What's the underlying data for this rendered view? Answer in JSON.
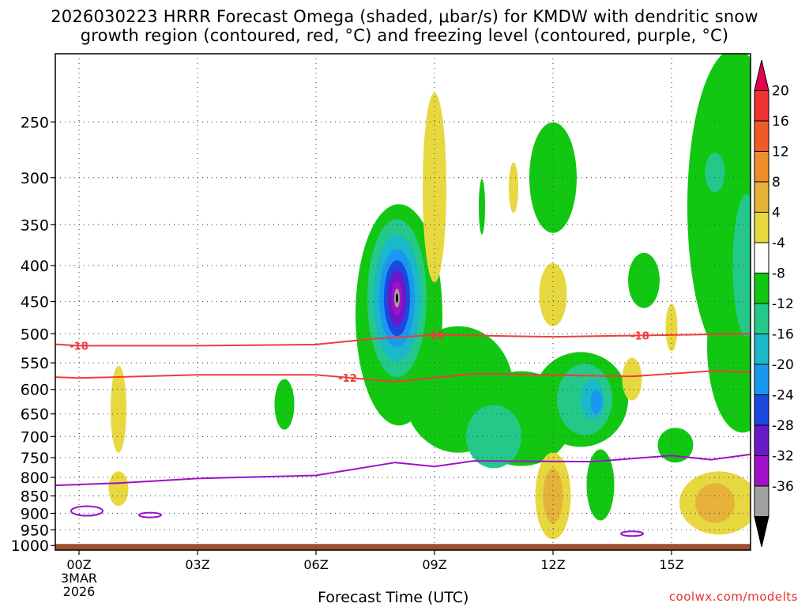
{
  "title_line1": "2026030223 HRRR Forecast Omega (shaded, μbar/s) for KMDW with dendritic snow",
  "title_line2": "growth region (contoured, red, °C) and freezing level (contoured, purple, °C)",
  "watermark": "coolwx.com/modelts",
  "chart_data": {
    "type": "heatmap",
    "title": "2026030223 HRRR Forecast Omega (shaded, μbar/s) for KMDW with dendritic snow growth region (contoured, red, °C) and freezing level (contoured, purple, °C)",
    "xlabel": "Forecast Time (UTC)",
    "ylabel": "",
    "x_ticks": [
      "00Z",
      "03Z",
      "06Z",
      "09Z",
      "12Z",
      "15Z"
    ],
    "x_tick_hours": [
      0,
      3,
      6,
      9,
      12,
      15
    ],
    "x_date_label": [
      "3MAR",
      "2026"
    ],
    "xlim_hours": [
      -0.6,
      17
    ],
    "y_ticks": [
      250,
      300,
      350,
      400,
      450,
      500,
      550,
      600,
      650,
      700,
      750,
      800,
      850,
      900,
      950,
      1000
    ],
    "ylim_hpa": [
      1015,
      200
    ],
    "grid": true,
    "colorbar": {
      "labels": [
        "20",
        "16",
        "12",
        "8",
        "4",
        "-4",
        "-8",
        "-12",
        "-16",
        "-20",
        "-24",
        "-28",
        "-32",
        "-36"
      ],
      "colors": [
        "#e8004f",
        "#f23030",
        "#f05a28",
        "#ee8e2a",
        "#e6b23a",
        "#e8d840",
        "#ffffff",
        "#12c712",
        "#24c98a",
        "#1ab8c8",
        "#1a98f0",
        "#1a48e0",
        "#6a18c8",
        "#a010c8",
        "#a0a0a0",
        "#000000"
      ]
    },
    "omega_features": [
      {
        "label": "upward max",
        "hour": 8.0,
        "pressure": 450,
        "min_value": -36
      },
      {
        "label": "upward",
        "hour": 13.0,
        "pressure": 620,
        "min_value": -20
      },
      {
        "label": "downward",
        "hour": 12.0,
        "pressure": 850,
        "max_value": 12
      },
      {
        "label": "downward",
        "hour": 16.0,
        "pressure": 870,
        "max_value": 12
      }
    ],
    "series": [
      {
        "name": "-18",
        "hours": [
          -1,
          0,
          3,
          6,
          7.5,
          9,
          12,
          14,
          17
        ],
        "pressure": [
          516,
          520,
          520,
          518,
          508,
          502,
          505,
          503,
          500
        ]
      },
      {
        "name": "-12",
        "hours": [
          -1,
          0,
          3,
          6,
          8,
          10,
          14,
          16,
          17
        ],
        "pressure": [
          575,
          578,
          572,
          572,
          585,
          570,
          575,
          565,
          567
        ]
      }
    ],
    "freezing_level": {
      "hours": [
        -1,
        1,
        3,
        6,
        8,
        9,
        10,
        13,
        15,
        16,
        17
      ],
      "pressure": [
        823,
        815,
        803,
        795,
        762,
        772,
        758,
        760,
        745,
        755,
        742
      ]
    },
    "freezing_small_contours": [
      {
        "hour": 0.2,
        "pressure": 893
      },
      {
        "hour": 1.8,
        "pressure": 905
      },
      {
        "hour": 14.0,
        "pressure": 962
      }
    ]
  }
}
